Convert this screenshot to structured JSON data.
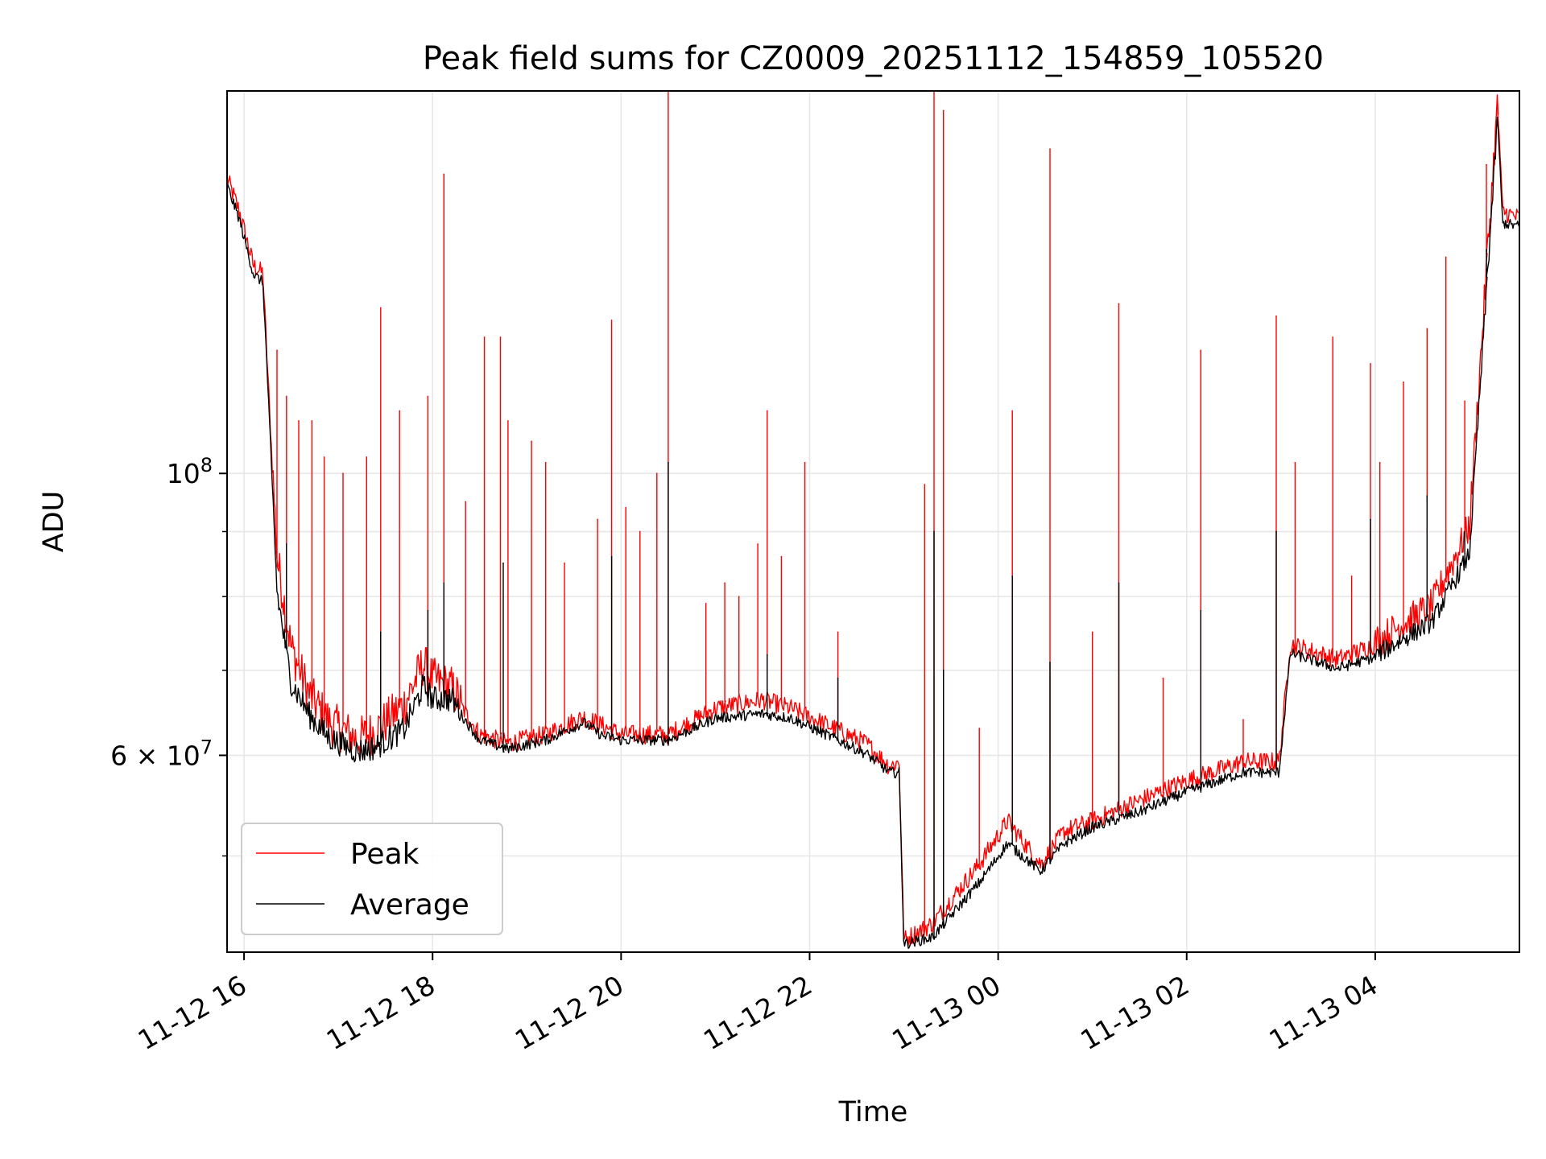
{
  "chart_data": {
    "type": "line",
    "title": "Peak field sums for CZ0009_20251112_154859_105520",
    "xlabel": "Time",
    "ylabel": "ADU",
    "yscale": "log",
    "grid": true,
    "legend_position": "lower-left",
    "x_unit": "hours since 2025-11-12 00:00",
    "xlim": [
      15.82,
      29.53
    ],
    "ylim": [
      42000000.0,
      200000000.0
    ],
    "x_ticks": [
      {
        "value": 16,
        "label": "11-12 16"
      },
      {
        "value": 18,
        "label": "11-12 18"
      },
      {
        "value": 20,
        "label": "11-12 20"
      },
      {
        "value": 22,
        "label": "11-12 22"
      },
      {
        "value": 24,
        "label": "11-13 00"
      },
      {
        "value": 26,
        "label": "11-13 02"
      },
      {
        "value": 28,
        "label": "11-13 04"
      }
    ],
    "y_major_ticks": [
      {
        "value": 60000000,
        "label_base": "6 × 10",
        "label_exp": "7"
      },
      {
        "value": 100000000,
        "label_base": "10",
        "label_exp": "8"
      }
    ],
    "y_minor_ticks": [
      50000000,
      70000000,
      80000000,
      90000000
    ],
    "series": [
      {
        "name": "Peak",
        "color": "#ff0000",
        "x": [
          15.82,
          15.95,
          16.1,
          16.2,
          16.25,
          16.35,
          16.5,
          16.7,
          16.9,
          17.2,
          17.4,
          17.7,
          17.9,
          18.0,
          18.2,
          18.5,
          18.8,
          19.2,
          19.6,
          19.8,
          20.0,
          20.5,
          21.0,
          21.5,
          21.8,
          22.2,
          22.6,
          22.85,
          22.95,
          23.0,
          23.3,
          23.8,
          24.1,
          24.45,
          24.7,
          25.0,
          25.5,
          26.0,
          26.6,
          26.98,
          27.1,
          27.6,
          28.0,
          28.6,
          29.0,
          29.3,
          29.35,
          29.53
        ],
        "y": [
          170000000,
          160000000,
          145000000,
          143000000,
          120000000,
          85000000,
          72000000,
          66000000,
          63000000,
          61000000,
          62000000,
          65000000,
          70000000,
          68000000,
          67000000,
          62000000,
          61000000,
          62000000,
          64000000,
          63000000,
          62000000,
          62000000,
          65000000,
          66000000,
          65000000,
          63000000,
          61000000,
          58500000,
          59000000,
          42700000,
          44000000,
          49000000,
          53000000,
          49000000,
          52000000,
          53000000,
          55000000,
          57000000,
          59000000,
          59000000,
          73000000,
          71000000,
          73000000,
          78000000,
          90000000,
          195000000,
          160000000,
          158000000
        ],
        "spikes": [
          [
            16.35,
            125000000
          ],
          [
            16.45,
            115000000
          ],
          [
            16.58,
            110000000
          ],
          [
            16.72,
            110000000
          ],
          [
            16.85,
            103000000
          ],
          [
            17.05,
            100000000
          ],
          [
            17.3,
            103000000
          ],
          [
            17.45,
            135000000
          ],
          [
            17.65,
            112000000
          ],
          [
            17.95,
            115000000
          ],
          [
            18.12,
            172000000
          ],
          [
            18.35,
            95000000
          ],
          [
            18.55,
            128000000
          ],
          [
            18.72,
            128000000
          ],
          [
            18.8,
            110000000
          ],
          [
            19.05,
            106000000
          ],
          [
            19.2,
            102000000
          ],
          [
            19.4,
            85000000
          ],
          [
            19.75,
            92000000
          ],
          [
            19.9,
            132000000
          ],
          [
            20.05,
            94000000
          ],
          [
            20.2,
            90000000
          ],
          [
            20.38,
            100000000
          ],
          [
            20.5,
            200000000
          ],
          [
            20.9,
            79000000
          ],
          [
            21.1,
            82000000
          ],
          [
            21.25,
            80000000
          ],
          [
            21.45,
            88000000
          ],
          [
            21.55,
            112000000
          ],
          [
            21.7,
            86000000
          ],
          [
            21.95,
            102000000
          ],
          [
            22.3,
            75000000
          ],
          [
            23.22,
            98000000
          ],
          [
            23.32,
            200000000
          ],
          [
            23.42,
            193000000
          ],
          [
            23.8,
            63000000
          ],
          [
            24.15,
            112000000
          ],
          [
            24.55,
            180000000
          ],
          [
            25.0,
            75000000
          ],
          [
            25.28,
            136000000
          ],
          [
            25.75,
            69000000
          ],
          [
            26.15,
            125000000
          ],
          [
            26.6,
            64000000
          ],
          [
            26.95,
            133000000
          ],
          [
            27.15,
            102000000
          ],
          [
            27.55,
            128000000
          ],
          [
            27.75,
            83000000
          ],
          [
            27.95,
            122000000
          ],
          [
            28.05,
            102000000
          ],
          [
            28.3,
            118000000
          ],
          [
            28.55,
            130000000
          ],
          [
            28.75,
            148000000
          ],
          [
            28.95,
            114000000
          ],
          [
            29.18,
            175000000
          ],
          [
            29.3,
            195000000
          ]
        ]
      },
      {
        "name": "Average",
        "color": "#000000",
        "x": [
          15.82,
          15.95,
          16.1,
          16.2,
          16.25,
          16.35,
          16.5,
          16.7,
          16.9,
          17.2,
          17.4,
          17.7,
          17.9,
          18.0,
          18.2,
          18.5,
          18.8,
          19.2,
          19.6,
          19.8,
          20.0,
          20.5,
          21.0,
          21.5,
          21.8,
          22.2,
          22.6,
          22.85,
          22.95,
          23.0,
          23.3,
          23.8,
          24.1,
          24.45,
          24.7,
          25.0,
          25.5,
          26.0,
          26.6,
          26.98,
          27.1,
          27.6,
          28.0,
          28.6,
          29.0,
          29.3,
          29.35,
          29.53
        ],
        "y": [
          168000000,
          158000000,
          143000000,
          141000000,
          118000000,
          80000000,
          68000000,
          64000000,
          61500000,
          60000000,
          60500000,
          62500000,
          67500000,
          66000000,
          66000000,
          61500000,
          60500000,
          61500000,
          63500000,
          62000000,
          61500000,
          61500000,
          64000000,
          64500000,
          64000000,
          62000000,
          60000000,
          58000000,
          58000000,
          42500000,
          43000000,
          47500000,
          51000000,
          48500000,
          51000000,
          52500000,
          54000000,
          56000000,
          58000000,
          58000000,
          72000000,
          70000000,
          71500000,
          76000000,
          86000000,
          190000000,
          157000000,
          156000000
        ],
        "spikes": [
          [
            16.45,
            88000000
          ],
          [
            17.45,
            75000000
          ],
          [
            17.95,
            78000000
          ],
          [
            18.12,
            82000000
          ],
          [
            18.75,
            85000000
          ],
          [
            19.9,
            86000000
          ],
          [
            20.5,
            102000000
          ],
          [
            21.55,
            72000000
          ],
          [
            22.3,
            69000000
          ],
          [
            23.32,
            90000000
          ],
          [
            23.42,
            70000000
          ],
          [
            24.15,
            83000000
          ],
          [
            24.55,
            71000000
          ],
          [
            25.28,
            82000000
          ],
          [
            26.15,
            78000000
          ],
          [
            26.95,
            90000000
          ],
          [
            27.95,
            92000000
          ],
          [
            28.55,
            96000000
          ],
          [
            28.95,
            90000000
          ],
          [
            29.18,
            150000000
          ]
        ]
      }
    ]
  }
}
